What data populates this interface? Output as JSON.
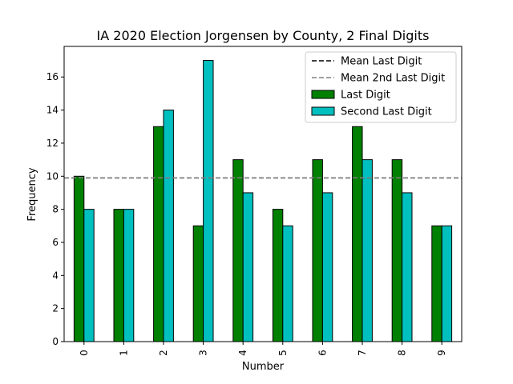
{
  "chart_data": {
    "type": "bar",
    "title": "IA 2020 Election Jorgensen by County, 2 Final Digits",
    "xlabel": "Number",
    "ylabel": "Frequency",
    "categories": [
      "0",
      "1",
      "2",
      "3",
      "4",
      "5",
      "6",
      "7",
      "8",
      "9"
    ],
    "series": [
      {
        "name": "Last Digit",
        "color": "#008000",
        "values": [
          10,
          8,
          13,
          7,
          11,
          8,
          11,
          13,
          11,
          7
        ]
      },
      {
        "name": "Second Last Digit",
        "color": "#00bfbf",
        "values": [
          8,
          8,
          14,
          17,
          9,
          7,
          9,
          11,
          9,
          7
        ]
      }
    ],
    "reference_lines": [
      {
        "name": "Mean Last Digit",
        "value": 9.9,
        "color": "#000000",
        "style": "dashed"
      },
      {
        "name": "Mean 2nd Last Digit",
        "value": 9.9,
        "color": "#808080",
        "style": "dashed"
      }
    ],
    "ylim": [
      0,
      17.85
    ],
    "yticks": [
      0,
      2,
      4,
      6,
      8,
      10,
      12,
      14,
      16
    ],
    "legend_position": "top-right",
    "grid": false
  }
}
